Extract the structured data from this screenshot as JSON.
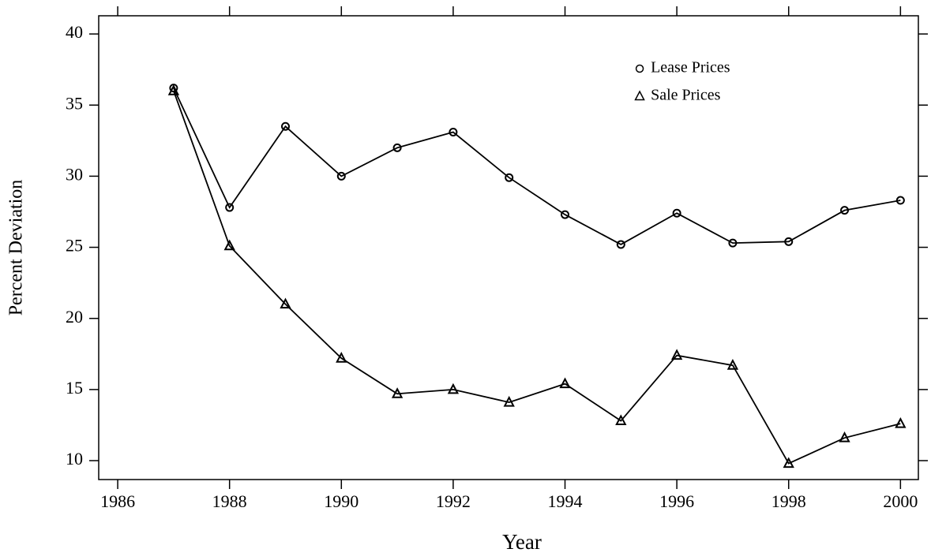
{
  "chart_data": {
    "type": "line",
    "x_label": "Year",
    "y_label": "Percent Deviation",
    "x": [
      1987,
      1988,
      1989,
      1990,
      1991,
      1992,
      1993,
      1994,
      1995,
      1996,
      1997,
      1998,
      1999,
      2000
    ],
    "series": [
      {
        "name": "Lease Prices",
        "color": "#000000",
        "marker": "circle",
        "values": [
          36.2,
          27.8,
          33.5,
          30.0,
          32.0,
          33.1,
          29.9,
          27.3,
          25.2,
          27.4,
          25.3,
          25.4,
          27.6,
          28.3
        ]
      },
      {
        "name": "Sale Prices",
        "color": "#000000",
        "marker": "triangle",
        "values": [
          36.0,
          25.1,
          21.0,
          17.2,
          14.7,
          15.0,
          14.1,
          15.4,
          12.8,
          17.4,
          16.7,
          9.8,
          11.6,
          12.6
        ]
      }
    ],
    "xlim": [
      1985.66,
      2000.32
    ],
    "xticks": [
      1986,
      1988,
      1990,
      1992,
      1994,
      1996,
      1998,
      2000
    ],
    "ylim": [
      8.67,
      41.28
    ],
    "yticks": [
      10,
      15,
      20,
      25,
      30,
      35,
      40
    ],
    "grid": false,
    "legend": "top-right"
  }
}
